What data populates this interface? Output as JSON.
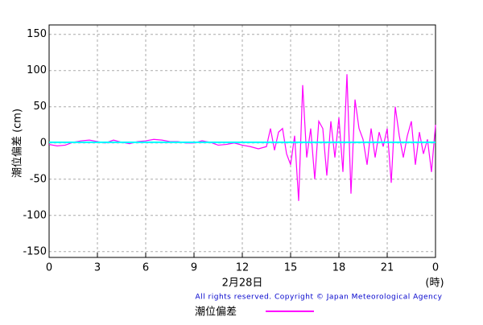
{
  "chart_data": {
    "type": "line",
    "ylabel": "潮位偏差 (cm)",
    "xlabel": "2月28日",
    "xunit": "(時)",
    "copyright": "All rights reserved. Copyright © Japan Meteorological Agency",
    "x": [
      0,
      0.5,
      1,
      1.5,
      2,
      2.5,
      3,
      3.5,
      4,
      4.5,
      5,
      5.5,
      6,
      6.5,
      7,
      7.5,
      8,
      8.5,
      9,
      9.5,
      10,
      10.5,
      11,
      11.5,
      12,
      12.5,
      13,
      13.5,
      13.75,
      14,
      14.25,
      14.5,
      14.75,
      15,
      15.25,
      15.5,
      15.75,
      16,
      16.25,
      16.5,
      16.75,
      17,
      17.25,
      17.5,
      17.75,
      18,
      18.25,
      18.5,
      18.75,
      19,
      19.25,
      19.5,
      19.75,
      20,
      20.25,
      20.5,
      20.75,
      21,
      21.25,
      21.5,
      21.75,
      22,
      22.25,
      22.5,
      22.75,
      23,
      23.25,
      23.5,
      23.75,
      24
    ],
    "series": [
      {
        "name": "潮位偏差",
        "color": "#ff00ff",
        "values": [
          -2,
          -4,
          -3,
          1,
          3,
          4,
          2,
          0,
          4,
          1,
          -1,
          2,
          3,
          5,
          4,
          2,
          2,
          0,
          0,
          3,
          1,
          -3,
          -2,
          0,
          -3,
          -5,
          -8,
          -5,
          20,
          -10,
          15,
          20,
          -15,
          -30,
          10,
          -80,
          80,
          -20,
          20,
          -50,
          30,
          20,
          -45,
          30,
          -20,
          35,
          -40,
          95,
          -70,
          60,
          20,
          5,
          -30,
          20,
          -20,
          15,
          -5,
          20,
          -55,
          50,
          10,
          -20,
          10,
          30,
          -30,
          15,
          -15,
          5,
          -40,
          25
        ]
      }
    ],
    "reference_line": {
      "value": 1,
      "color": "#00ffff"
    },
    "xlim": [
      0,
      24
    ],
    "xticks": [
      0,
      3,
      6,
      9,
      12,
      15,
      18,
      21,
      {
        "value": 24,
        "label": "0"
      }
    ],
    "ylim": [
      -158,
      163
    ],
    "yticks": [
      -150,
      -100,
      -50,
      0,
      50,
      100,
      150
    ],
    "grid": true
  }
}
